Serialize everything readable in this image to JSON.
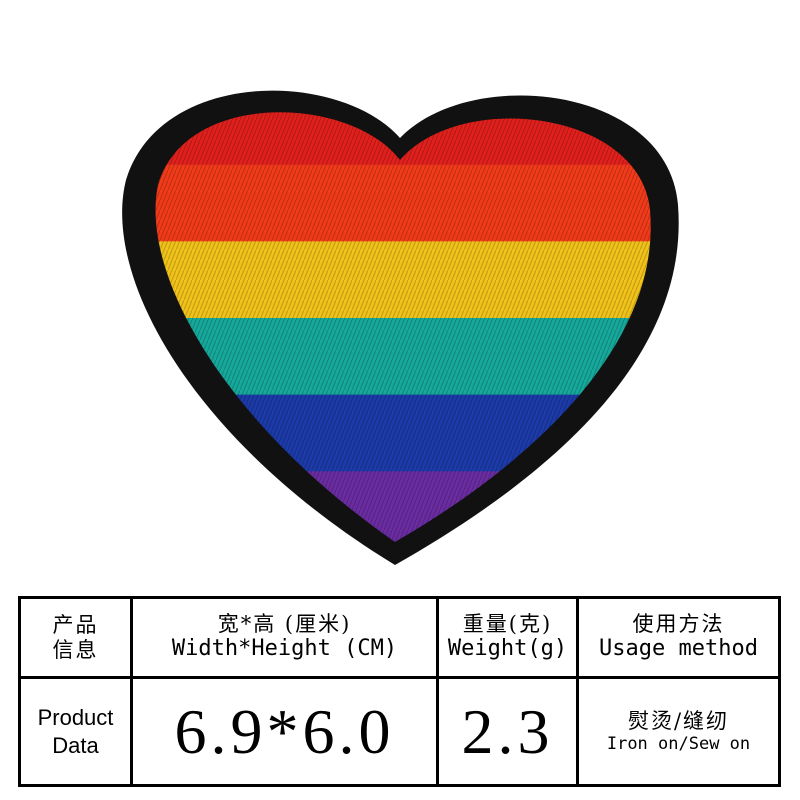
{
  "patch": {
    "stripe_colors": [
      "#e0201c",
      "#f03a1a",
      "#f0c21a",
      "#16a89a",
      "#1c3aa8",
      "#6a2ca0"
    ],
    "outline_color": "#111111"
  },
  "table": {
    "header": {
      "product_info_cn_1": "产品",
      "product_info_cn_2": "信息",
      "size_cn": "宽*高 (厘米)",
      "size_en": "Width*Height (CM)",
      "weight_cn": "重量(克)",
      "weight_en": "Weight(g)",
      "usage_cn": "使用方法",
      "usage_en": "Usage method"
    },
    "data": {
      "label_1": "Product",
      "label_2": "Data",
      "size_value": "6.9*6.0",
      "weight_value": "2.3",
      "usage_cn": "熨烫/缝纫",
      "usage_en": "Iron on/Sew on"
    }
  }
}
